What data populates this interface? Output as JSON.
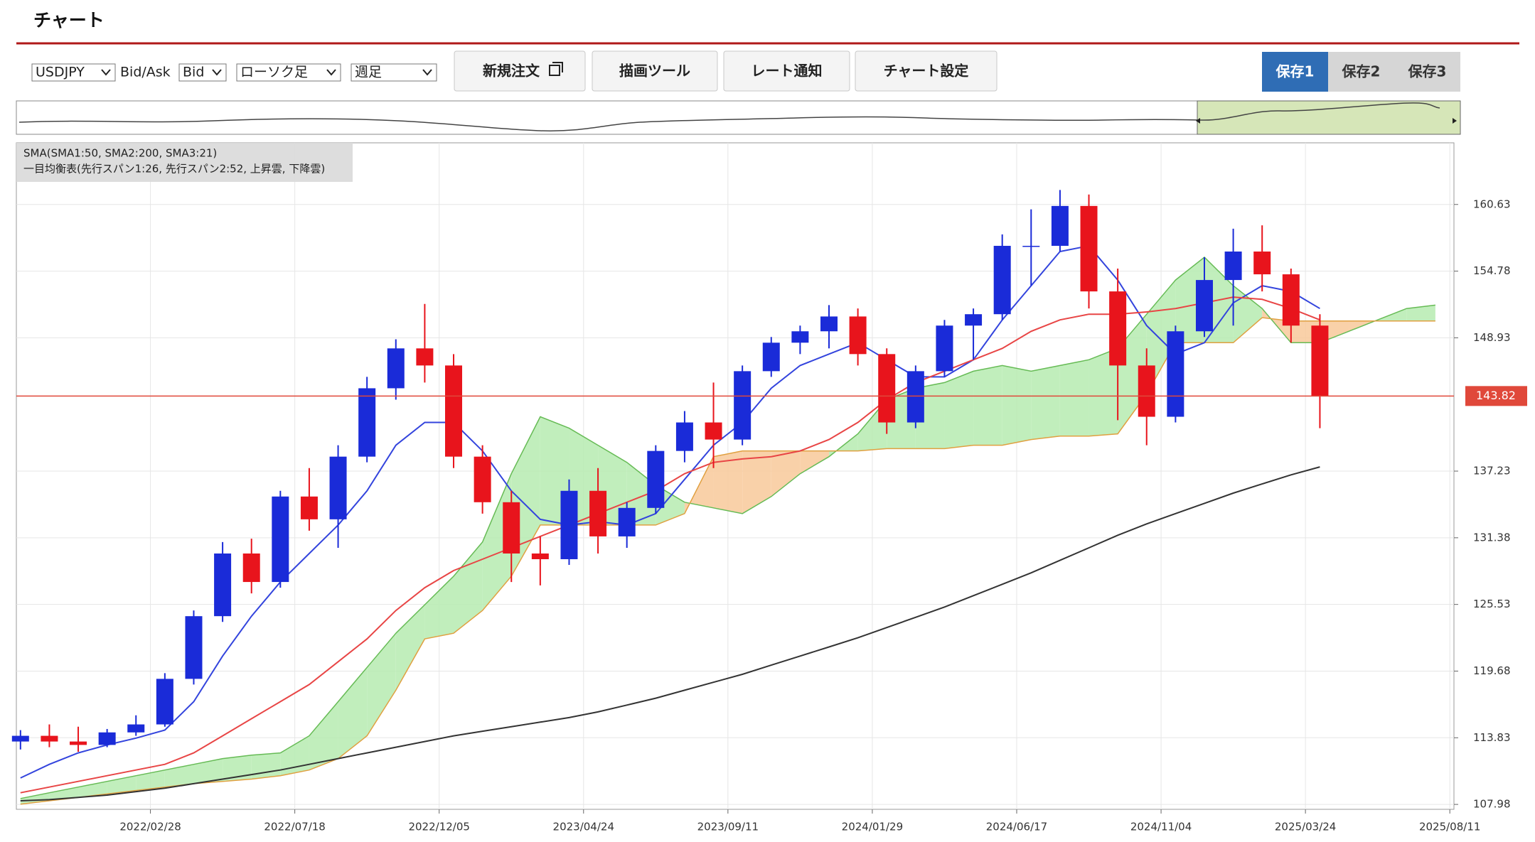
{
  "header": {
    "title": "チャート"
  },
  "toolbar": {
    "symbol": "USDJPY",
    "bid_ask_label": "Bid/Ask",
    "price_side": "Bid",
    "chart_kind": "ローソク足",
    "timeframe": "週足",
    "buttons": [
      "新規注文",
      "描画ツール",
      "レート通知",
      "チャート設定"
    ],
    "tabs": [
      "保存1",
      "保存2",
      "保存3"
    ],
    "active_tab": 0
  },
  "chart_data": {
    "type": "candlestick",
    "legend_lines": [
      "SMA(SMA1:50, SMA2:200, SMA3:21)",
      "一目均衡表(先行スパン1:26, 先行スパン2:52, 上昇雲, 下降雲)"
    ],
    "x": [
      "2021/10/25",
      "2021/11/22",
      "2021/12/20",
      "2022/01/17",
      "2022/02/14",
      "2022/03/14",
      "2022/04/11",
      "2022/05/09",
      "2022/06/06",
      "2022/07/04",
      "2022/08/01",
      "2022/08/29",
      "2022/09/26",
      "2022/10/24",
      "2022/11/21",
      "2022/12/19",
      "2023/01/16",
      "2023/02/13",
      "2023/03/13",
      "2023/04/10",
      "2023/05/08",
      "2023/06/05",
      "2023/07/03",
      "2023/07/31",
      "2023/08/28",
      "2023/09/25",
      "2023/10/23",
      "2023/11/20",
      "2023/12/18",
      "2024/01/15",
      "2024/02/12",
      "2024/03/11",
      "2024/04/08",
      "2024/05/06",
      "2024/06/03",
      "2024/07/01",
      "2024/07/29",
      "2024/08/26",
      "2024/09/23",
      "2024/10/21",
      "2024/11/18",
      "2024/12/16",
      "2025/01/13",
      "2025/02/10",
      "2025/03/10",
      "2025/04/07",
      "2025/05/05",
      "2025/06/02",
      "2025/06/30",
      "2025/07/28"
    ],
    "ohlc": [
      [
        113.5,
        114.5,
        112.8,
        114.0
      ],
      [
        114.0,
        115.0,
        113.0,
        113.5
      ],
      [
        113.5,
        114.8,
        112.6,
        113.2
      ],
      [
        113.2,
        114.6,
        113.0,
        114.3
      ],
      [
        114.3,
        115.8,
        114.0,
        115.0
      ],
      [
        115.0,
        119.5,
        114.8,
        119.0
      ],
      [
        119.0,
        125.0,
        118.5,
        124.5
      ],
      [
        124.5,
        131.0,
        124.0,
        130.0
      ],
      [
        130.0,
        131.3,
        126.5,
        127.5
      ],
      [
        127.5,
        135.5,
        127.0,
        135.0
      ],
      [
        135.0,
        137.5,
        132.0,
        133.0
      ],
      [
        133.0,
        139.5,
        130.5,
        138.5
      ],
      [
        138.5,
        145.5,
        138.0,
        144.5
      ],
      [
        144.5,
        148.8,
        143.5,
        148.0
      ],
      [
        148.0,
        151.9,
        145.0,
        146.5
      ],
      [
        146.5,
        147.5,
        137.5,
        138.5
      ],
      [
        138.5,
        139.5,
        133.5,
        134.5
      ],
      [
        134.5,
        135.5,
        127.5,
        130.0
      ],
      [
        130.0,
        131.5,
        127.2,
        129.5
      ],
      [
        129.5,
        136.5,
        129.0,
        135.5
      ],
      [
        135.5,
        137.5,
        130.0,
        131.5
      ],
      [
        131.5,
        134.5,
        130.5,
        134.0
      ],
      [
        134.0,
        139.5,
        133.5,
        139.0
      ],
      [
        139.0,
        142.5,
        138.0,
        141.5
      ],
      [
        141.5,
        145.0,
        137.5,
        140.0
      ],
      [
        140.0,
        146.5,
        139.5,
        146.0
      ],
      [
        146.0,
        149.0,
        145.5,
        148.5
      ],
      [
        148.5,
        150.0,
        147.5,
        149.5
      ],
      [
        149.5,
        151.8,
        148.0,
        150.8
      ],
      [
        150.8,
        151.5,
        146.5,
        147.5
      ],
      [
        147.5,
        148.0,
        140.5,
        141.5
      ],
      [
        141.5,
        146.5,
        141.0,
        146.0
      ],
      [
        146.0,
        150.5,
        145.5,
        150.0
      ],
      [
        150.0,
        151.5,
        147.0,
        151.0
      ],
      [
        151.0,
        158.0,
        150.5,
        157.0
      ],
      [
        157.0,
        160.2,
        153.5,
        157.0
      ],
      [
        157.0,
        161.9,
        156.5,
        160.5
      ],
      [
        160.5,
        161.5,
        151.5,
        153.0
      ],
      [
        153.0,
        155.0,
        141.7,
        146.5
      ],
      [
        146.5,
        148.0,
        139.5,
        142.0
      ],
      [
        142.0,
        150.0,
        141.5,
        149.5
      ],
      [
        149.5,
        156.0,
        149.0,
        154.0
      ],
      [
        154.0,
        158.5,
        150.0,
        156.5
      ],
      [
        156.5,
        158.8,
        153.0,
        154.5
      ],
      [
        154.5,
        155.0,
        148.5,
        150.0
      ],
      [
        150.0,
        151.0,
        141.0,
        143.8
      ],
      null,
      null,
      null,
      null
    ],
    "up_color": "#1a2bd8",
    "down_color": "#e8141c",
    "series": [
      {
        "color": "#3344dd",
        "values": [
          110.3,
          111.5,
          112.5,
          113.2,
          113.8,
          114.5,
          117,
          121,
          124.5,
          127.5,
          130,
          132.5,
          135.5,
          139.5,
          141.5,
          141.5,
          139,
          135.5,
          133,
          132.5,
          132.8,
          132.5,
          133.5,
          136.5,
          139.5,
          141.5,
          144.5,
          146.5,
          147.5,
          148.5,
          147,
          145.5,
          145.5,
          147,
          150.5,
          153.5,
          156.5,
          157,
          154,
          150,
          147.5,
          148.5,
          152,
          153.5,
          153,
          151.5,
          null,
          null,
          null,
          null
        ]
      },
      {
        "color": "#e84545",
        "values": [
          109,
          109.5,
          110,
          110.5,
          111,
          111.5,
          112.5,
          114,
          115.5,
          117,
          118.5,
          120.5,
          122.5,
          125,
          127,
          128.5,
          129.5,
          130.5,
          131.5,
          132.5,
          133.5,
          134.5,
          135.5,
          137,
          138,
          138.3,
          138.5,
          139,
          140,
          141.5,
          143.5,
          145,
          146,
          147,
          148,
          149.5,
          150.5,
          151,
          151,
          151.2,
          151.5,
          152,
          152.5,
          152.3,
          151.5,
          150.5,
          null,
          null,
          null,
          null
        ]
      },
      {
        "color": "#333333",
        "values": [
          108.3,
          108.4,
          108.6,
          108.8,
          109.1,
          109.4,
          109.8,
          110.2,
          110.6,
          111,
          111.5,
          112,
          112.5,
          113,
          113.5,
          114,
          114.4,
          114.8,
          115.2,
          115.6,
          116.1,
          116.7,
          117.3,
          118,
          118.7,
          119.4,
          120.2,
          121,
          121.8,
          122.6,
          123.5,
          124.4,
          125.3,
          126.3,
          127.3,
          128.3,
          129.4,
          130.5,
          131.6,
          132.6,
          133.5,
          134.4,
          135.3,
          136.1,
          136.9,
          137.6,
          null,
          null,
          null,
          null
        ]
      }
    ],
    "cloud": {
      "span_a": [
        108.5,
        109,
        109.5,
        110,
        110.5,
        111,
        111.5,
        112,
        112.3,
        112.5,
        114,
        117,
        120,
        123,
        125.5,
        128,
        131,
        137,
        142,
        141,
        139.5,
        138,
        136,
        134.5,
        134,
        133.5,
        135,
        137,
        138.5,
        140.5,
        143.5,
        144.5,
        145,
        146,
        146.5,
        146,
        146.5,
        147,
        148,
        151,
        154,
        156,
        153.5,
        151.5,
        148.5,
        148.5,
        149.5,
        150.5,
        151.5,
        151.8
      ],
      "span_b": [
        108,
        108.3,
        108.6,
        108.9,
        109.2,
        109.5,
        109.8,
        110,
        110.2,
        110.5,
        111,
        112,
        114,
        118,
        122.5,
        123,
        125,
        128,
        132.5,
        132.5,
        132.5,
        132.5,
        132.5,
        133.5,
        138.5,
        139,
        139,
        139,
        139,
        139,
        139.2,
        139.2,
        139.2,
        139.5,
        139.5,
        140,
        140.3,
        140.3,
        140.5,
        144,
        148.5,
        148.5,
        148.5,
        150.7,
        150.4,
        150.4,
        150.4,
        150.4,
        150.4,
        150.4
      ],
      "up_color": "#b6ebb0",
      "down_color": "#f8c99a",
      "span_a_color": "#66bb55",
      "span_b_color": "#e0a040"
    },
    "current_price": 143.82,
    "current_price_color": "#e0483a",
    "xlim": [
      "2021/10/21",
      "2025/08/15"
    ],
    "xticks": [
      "2022/02/28",
      "2022/07/18",
      "2022/12/05",
      "2023/04/24",
      "2023/09/11",
      "2024/01/29",
      "2024/06/17",
      "2024/11/04",
      "2025/03/24",
      "2025/08/11"
    ],
    "ylim": [
      107.55,
      166.04
    ],
    "yticks": [
      107.98,
      113.83,
      119.68,
      125.53,
      131.38,
      137.23,
      148.93,
      154.78,
      160.63
    ],
    "grid": true
  }
}
